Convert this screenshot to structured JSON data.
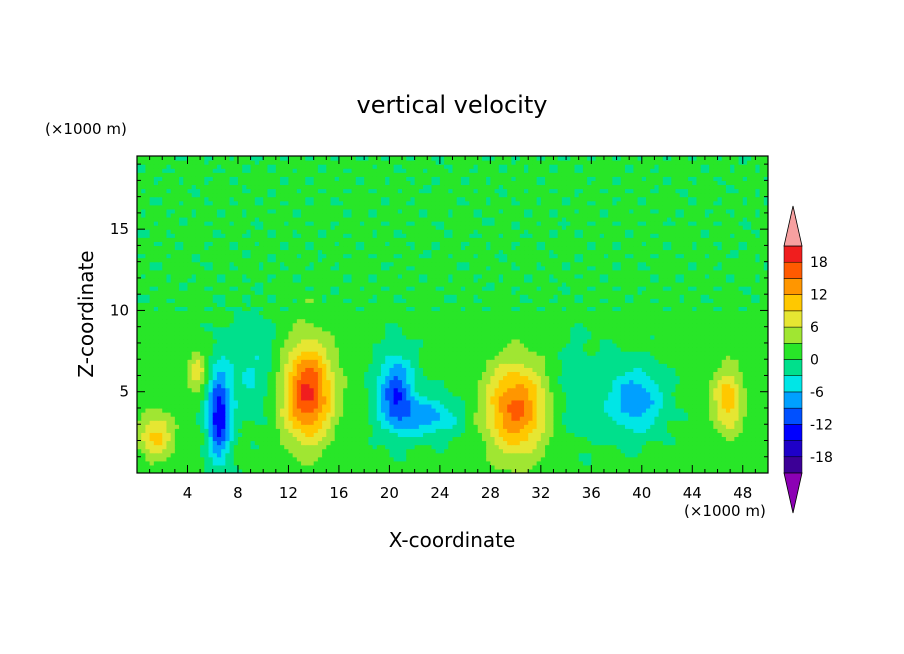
{
  "chart_data": {
    "type": "heatmap",
    "title": "vertical velocity",
    "xlabel": "X-coordinate",
    "ylabel": "Z-coordinate",
    "x_unit": "(×1000 m)",
    "y_unit": "(×1000 m)",
    "xlim": [
      0,
      50
    ],
    "ylim": [
      0,
      19.5
    ],
    "x_ticks": [
      4,
      8,
      12,
      16,
      20,
      24,
      28,
      32,
      36,
      40,
      44,
      48
    ],
    "y_ticks": [
      5,
      10,
      15
    ],
    "grid": false,
    "colorbar": {
      "position": "right",
      "tick_labels": [
        "18",
        "12",
        "6",
        "0",
        "-6",
        "-12",
        "-18"
      ],
      "tick_values": [
        18,
        12,
        6,
        0,
        -6,
        -12,
        -18
      ],
      "levels": [
        -21,
        -18,
        -15,
        -12,
        -9,
        -6,
        -3,
        0,
        3,
        6,
        9,
        12,
        15,
        18,
        21
      ],
      "colors": [
        "#8c00b4",
        "#3c0096",
        "#1e00c8",
        "#0000ff",
        "#0050ff",
        "#00a0ff",
        "#00e6e6",
        "#00e08c",
        "#28e628",
        "#a0e632",
        "#e6e632",
        "#ffc800",
        "#ff9600",
        "#ff5a00",
        "#f01e1e",
        "#f7a0a0"
      ],
      "over_color": "#f7a0a0",
      "under_color": "#8c00b4"
    },
    "features": [
      {
        "x": 13.5,
        "z": 5.0,
        "w": 2.0,
        "h": 3.0,
        "value": 18
      },
      {
        "x": 30.0,
        "z": 4.0,
        "w": 2.4,
        "h": 2.8,
        "value": 15
      },
      {
        "x": 6.5,
        "z": 3.5,
        "w": 0.9,
        "h": 2.6,
        "value": -15
      },
      {
        "x": 20.5,
        "z": 5.0,
        "w": 1.4,
        "h": 2.2,
        "value": -12
      },
      {
        "x": 23.0,
        "z": 3.5,
        "w": 2.5,
        "h": 1.2,
        "value": -8
      },
      {
        "x": 39.5,
        "z": 4.5,
        "w": 2.2,
        "h": 2.0,
        "value": -9
      },
      {
        "x": 1.5,
        "z": 2.3,
        "w": 1.4,
        "h": 1.4,
        "value": 9
      },
      {
        "x": 46.8,
        "z": 4.5,
        "w": 1.2,
        "h": 2.0,
        "value": 10
      },
      {
        "x": 4.8,
        "z": 6.3,
        "w": 0.8,
        "h": 1.3,
        "value": 7
      },
      {
        "x": 9.0,
        "z": 6.5,
        "w": 2.5,
        "h": 3.0,
        "value": -4
      },
      {
        "x": 35.0,
        "z": 5.0,
        "w": 2.0,
        "h": 3.0,
        "value": -3
      }
    ]
  }
}
